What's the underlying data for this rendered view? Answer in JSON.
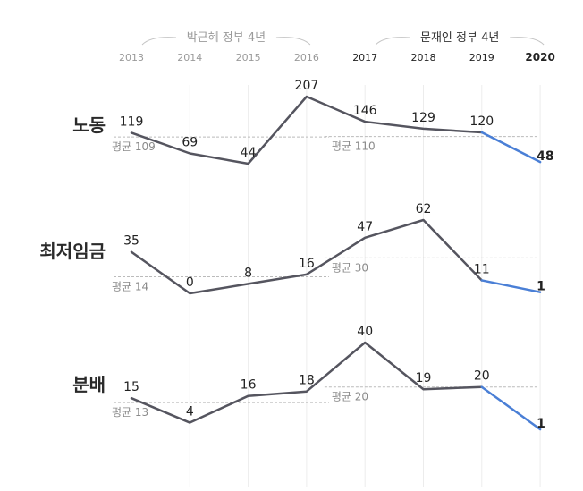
{
  "chart_data": {
    "type": "line",
    "x": [
      "2013",
      "2014",
      "2015",
      "2016",
      "2017",
      "2018",
      "2019",
      "2020"
    ],
    "eras": [
      {
        "label": "박근혜 정부 4년",
        "years": [
          "2013",
          "2014",
          "2015",
          "2016"
        ],
        "color": "#9a9a9a"
      },
      {
        "label": "문재인 정부 4년",
        "years": [
          "2017",
          "2018",
          "2019",
          "2020"
        ],
        "color": "#333333"
      }
    ],
    "series": [
      {
        "name": "노동",
        "values": [
          119,
          69,
          44,
          207,
          146,
          129,
          120,
          48
        ],
        "labels": [
          "119",
          "69",
          "44",
          "207",
          "146",
          "129",
          "120",
          "48"
        ],
        "averages": [
          {
            "label": "평균 109",
            "value": 109,
            "period": "2013-2016"
          },
          {
            "label": "평균 110",
            "value": 110,
            "period": "2017-2020"
          }
        ],
        "ylim": [
          44,
          207
        ]
      },
      {
        "name": "최저임금",
        "values": [
          35,
          0,
          8,
          16,
          47,
          62,
          11,
          1
        ],
        "labels": [
          "35",
          "0",
          "8",
          "16",
          "47",
          "62",
          "11",
          "1"
        ],
        "averages": [
          {
            "label": "평균 14",
            "value": 14,
            "period": "2013-2016"
          },
          {
            "label": "평균 30",
            "value": 30,
            "period": "2017-2020"
          }
        ],
        "ylim": [
          0,
          62
        ]
      },
      {
        "name": "분배",
        "values": [
          15,
          4,
          16,
          18,
          40,
          19,
          20,
          1
        ],
        "labels": [
          "15",
          "4",
          "16",
          "18",
          "40",
          "19",
          "20",
          "1"
        ],
        "averages": [
          {
            "label": "평균 13",
            "value": 13,
            "period": "2013-2016"
          },
          {
            "label": "평균 20",
            "value": 20,
            "period": "2017-2020"
          }
        ],
        "ylim": [
          1,
          40
        ]
      }
    ],
    "colors": {
      "line": "#55555f",
      "highlight": "#4a7fd6",
      "average": "#bbbbbb",
      "gridline": "#ececec",
      "era_past": "#9a9a9a",
      "era_current": "#333333"
    },
    "highlight_year": "2020",
    "grid": true
  }
}
